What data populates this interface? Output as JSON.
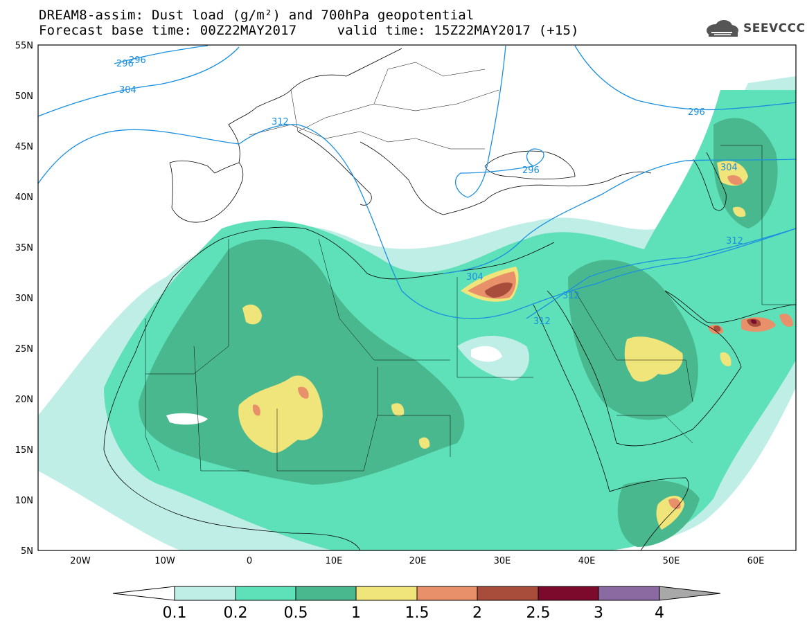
{
  "title": {
    "line1": "DREAM8-assim: Dust load (g/m²) and 700hPa geopotential",
    "line2": "Forecast base time: 00Z22MAY2017     valid time: 15Z22MAY2017 (+15)"
  },
  "logo": {
    "text": "SEEVCCC",
    "icon": "cloud-icon"
  },
  "map": {
    "lat_labels": [
      "55N",
      "50N",
      "45N",
      "40N",
      "35N",
      "30N",
      "25N",
      "20N",
      "15N",
      "10N",
      "5N"
    ],
    "lon_labels": [
      "20W",
      "10W",
      "0",
      "10E",
      "20E",
      "30E",
      "40E",
      "50E",
      "60E"
    ],
    "contour_labels": [
      "296",
      "296",
      "304",
      "312",
      "296",
      "296",
      "304",
      "304",
      "312",
      "312",
      "312"
    ],
    "contour_color": "#1a8fe0"
  },
  "colorbar": {
    "levels": [
      "0.1",
      "0.2",
      "0.5",
      "1",
      "1.5",
      "2",
      "2.5",
      "3",
      "4"
    ],
    "colors": [
      "#ffffff",
      "#bfeee6",
      "#5ee0b8",
      "#4ab88e",
      "#f0e57a",
      "#e8906a",
      "#a84c3c",
      "#7c0a2c",
      "#8a6aa0",
      "#a8a8a8"
    ]
  },
  "fills": {
    "lev1": "#bfeee6",
    "lev2": "#5ee0b8",
    "lev3": "#4ab88e",
    "lev4": "#f0e57a",
    "lev5": "#e8906a",
    "lev6": "#a84c3c",
    "lev7": "#7c0a2c"
  }
}
